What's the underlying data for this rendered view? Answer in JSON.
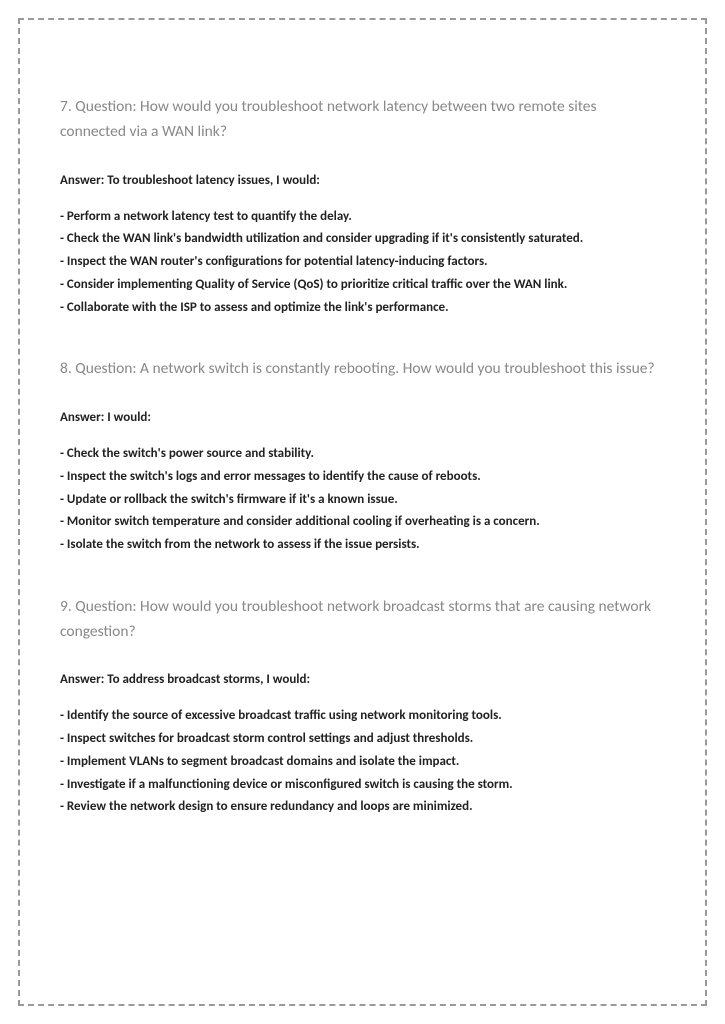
{
  "questions": [
    {
      "title": "7. Question: How would you troubleshoot network latency between two remote sites connected via a WAN link?",
      "intro": "Answer: To troubleshoot latency issues, I would:",
      "items": [
        "- Perform a network latency test to quantify the delay.",
        "- Check the WAN link's bandwidth utilization and consider upgrading if it's consistently saturated.",
        "- Inspect the WAN router's configurations for potential latency-inducing factors.",
        "- Consider implementing Quality of Service (QoS) to prioritize critical traffic over the WAN link.",
        "- Collaborate with the ISP to assess and optimize the link's performance."
      ]
    },
    {
      "title": "8. Question: A network switch is constantly rebooting. How would you troubleshoot this issue?",
      "intro": "Answer: I would:",
      "items": [
        "- Check the switch's power source and stability.",
        "- Inspect the switch's logs and error messages to identify the cause of reboots.",
        "- Update or rollback the switch's firmware if it's a known issue.",
        "- Monitor switch temperature and consider additional cooling if overheating is a concern.",
        "- Isolate the switch from the network to assess if the issue persists."
      ]
    },
    {
      "title": "9. Question: How would you troubleshoot network broadcast storms that are causing network congestion?",
      "intro": "Answer: To address broadcast storms, I would:",
      "items": [
        "- Identify the source of excessive broadcast traffic using network monitoring tools.",
        "- Inspect switches for broadcast storm control settings and adjust thresholds.",
        "- Implement VLANs to segment broadcast domains and isolate the impact.",
        "- Investigate if a malfunctioning device or misconfigured switch is causing the storm.",
        "- Review the network design to ensure redundancy and loops are minimized."
      ]
    }
  ],
  "colors": {
    "question_title": "#888888",
    "body_text": "#222222",
    "border": "#999999",
    "background": "#ffffff"
  }
}
